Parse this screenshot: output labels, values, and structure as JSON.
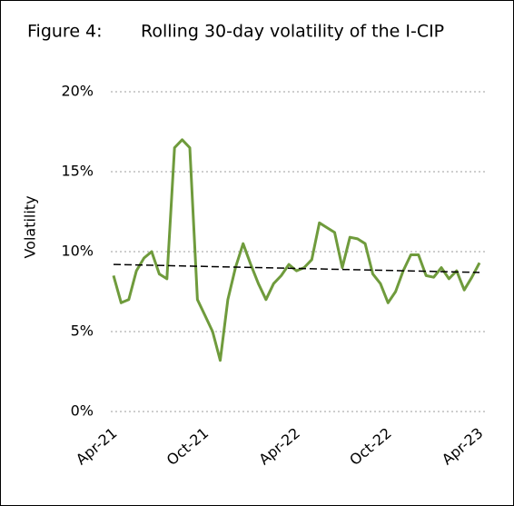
{
  "chart_data": {
    "type": "line",
    "figure_label": "Figure 4:",
    "title": "Rolling 30-day volatility of the I-CIP",
    "y_label": "Volatility",
    "categories": [
      "Apr-21",
      null,
      null,
      null,
      null,
      null,
      null,
      null,
      null,
      null,
      null,
      null,
      "Oct-21",
      null,
      null,
      null,
      null,
      null,
      null,
      null,
      null,
      null,
      null,
      null,
      "Apr-22",
      null,
      null,
      null,
      null,
      null,
      null,
      null,
      null,
      null,
      null,
      null,
      "Oct-22",
      null,
      null,
      null,
      null,
      null,
      null,
      null,
      null,
      null,
      null,
      null,
      "Apr-23"
    ],
    "series": [
      {
        "color": "#6f9b3c",
        "values": [
          8.5,
          6.8,
          7.0,
          8.8,
          9.6,
          10.0,
          8.6,
          8.3,
          16.5,
          17.0,
          16.5,
          7.0,
          6.0,
          5.0,
          3.2,
          7.0,
          9.0,
          10.5,
          9.2,
          8.0,
          7.0,
          8.0,
          8.5,
          9.2,
          8.8,
          9.0,
          9.5,
          11.8,
          11.5,
          11.2,
          9.0,
          10.9,
          10.8,
          10.5,
          8.6,
          8.0,
          6.8,
          7.5,
          8.8,
          9.8,
          9.8,
          8.5,
          8.4,
          9.0,
          8.3,
          8.8,
          7.6,
          8.4,
          9.3
        ]
      }
    ],
    "trend_line": {
      "color": "#000000",
      "values": [
        9.2,
        8.7
      ]
    },
    "ylim": [
      0,
      20
    ],
    "yticks": [
      {
        "value": 0,
        "label": "0%"
      },
      {
        "value": 5,
        "label": "5%"
      },
      {
        "value": 10,
        "label": "10%"
      },
      {
        "value": 15,
        "label": "15%"
      },
      {
        "value": 20,
        "label": "20%"
      }
    ],
    "grid": true
  }
}
